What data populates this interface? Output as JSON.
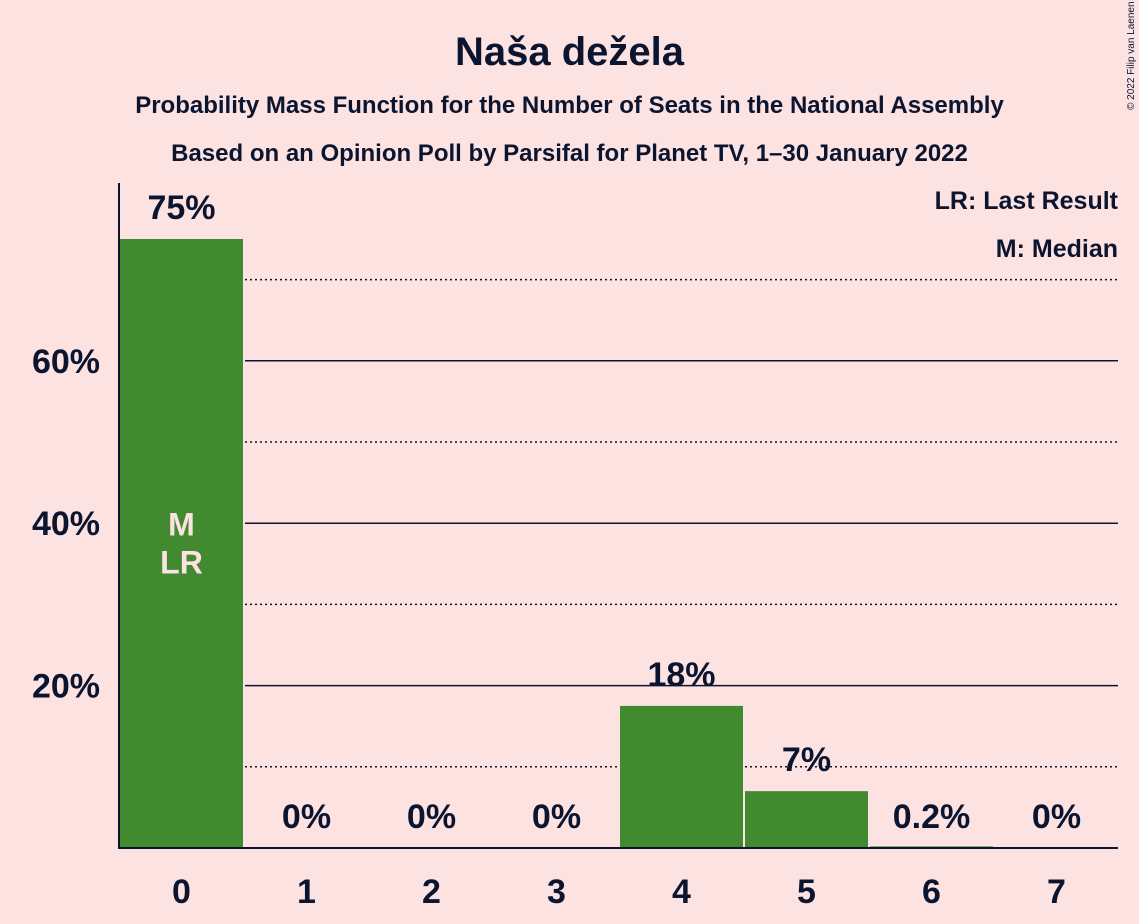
{
  "chart_data": {
    "type": "bar",
    "title": "Naša dežela",
    "subtitle": "Probability Mass Function for the Number of Seats in the National Assembly",
    "subtitle2": "Based on an Opinion Poll by Parsifal for Planet TV, 1–30 January 2022",
    "categories": [
      "0",
      "1",
      "2",
      "3",
      "4",
      "5",
      "6",
      "7"
    ],
    "values": [
      75,
      0,
      0,
      0,
      17.5,
      7,
      0.2,
      0
    ],
    "value_labels": [
      "75%",
      "0%",
      "0%",
      "0%",
      "18%",
      "7%",
      "0.2%",
      "0%"
    ],
    "ylim": [
      0,
      75
    ],
    "y_ticks": [
      20,
      40,
      60
    ],
    "y_tick_labels": [
      "20%",
      "40%",
      "60%"
    ],
    "minor_gridlines": [
      10,
      30,
      50,
      70
    ],
    "bar_color": "#418a30",
    "median_index": 0,
    "last_result_index": 0,
    "median_marker": "M",
    "last_result_marker": "LR",
    "legend": [
      "LR: Last Result",
      "M: Median"
    ],
    "legend_position": "top-right",
    "copyright": "© 2022 Filip van Laenen"
  }
}
